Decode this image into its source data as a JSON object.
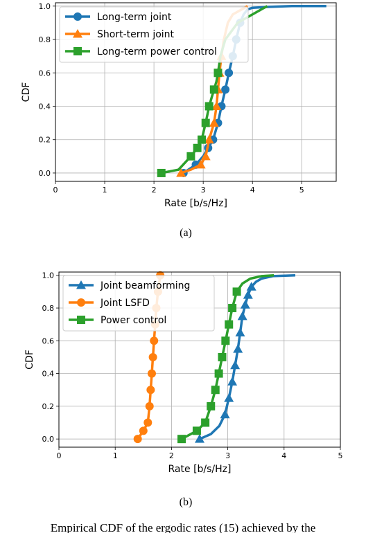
{
  "chart_data": [
    {
      "type": "line",
      "panel_label": "(a)",
      "xlabel": "Rate [b/s/Hz]",
      "ylabel": "CDF",
      "xlim": [
        0,
        5.7
      ],
      "ylim": [
        -0.05,
        1.02
      ],
      "xticks": [
        "0",
        "1",
        "2",
        "3",
        "4",
        "5"
      ],
      "yticks": [
        "0.0",
        "0.2",
        "0.4",
        "0.6",
        "0.8",
        "1.0"
      ],
      "grid": true,
      "legend_position": "top-left",
      "series": [
        {
          "name": "Long-term joint",
          "color": "#1f77b4",
          "marker": "circle",
          "x": [
            2.6,
            2.7,
            2.85,
            3.0,
            3.1,
            3.2,
            3.3,
            3.37,
            3.45,
            3.52,
            3.6,
            3.67,
            3.75,
            3.82,
            3.9,
            4.0,
            4.3,
            4.8,
            5.5
          ],
          "y": [
            0.0,
            0.02,
            0.05,
            0.1,
            0.15,
            0.2,
            0.3,
            0.4,
            0.5,
            0.6,
            0.7,
            0.8,
            0.9,
            0.95,
            0.98,
            0.99,
            0.995,
            1.0,
            1.0
          ],
          "marker_indices": [
            0,
            2,
            4,
            5,
            6,
            7,
            8,
            9,
            10,
            11,
            12
          ]
        },
        {
          "name": "Short-term joint",
          "color": "#ff7f0e",
          "marker": "triangle",
          "x": [
            2.55,
            2.75,
            2.95,
            3.05,
            3.12,
            3.17,
            3.22,
            3.27,
            3.3,
            3.33,
            3.37,
            3.42,
            3.5,
            3.6,
            3.9
          ],
          "y": [
            0.0,
            0.02,
            0.05,
            0.1,
            0.2,
            0.25,
            0.3,
            0.4,
            0.5,
            0.6,
            0.7,
            0.8,
            0.9,
            0.95,
            1.0
          ],
          "marker_indices": [
            0,
            2,
            3,
            4,
            6,
            7,
            8,
            9,
            10
          ]
        },
        {
          "name": "Long-term power control",
          "color": "#2ca02c",
          "marker": "square",
          "x": [
            2.15,
            2.5,
            2.75,
            2.88,
            2.97,
            3.05,
            3.12,
            3.17,
            3.22,
            3.27,
            3.3,
            3.35,
            3.45,
            3.7,
            4.3
          ],
          "y": [
            0.0,
            0.02,
            0.1,
            0.15,
            0.2,
            0.3,
            0.4,
            0.45,
            0.5,
            0.55,
            0.6,
            0.7,
            0.8,
            0.9,
            1.0
          ],
          "marker_indices": [
            0,
            2,
            3,
            4,
            5,
            6,
            8,
            10
          ]
        }
      ]
    },
    {
      "type": "line",
      "panel_label": "(b)",
      "xlabel": "Rate [b/s/Hz]",
      "ylabel": "CDF",
      "xlim": [
        0,
        5
      ],
      "ylim": [
        -0.05,
        1.02
      ],
      "xticks": [
        "0",
        "1",
        "2",
        "3",
        "4",
        "5"
      ],
      "yticks": [
        "0.0",
        "0.2",
        "0.4",
        "0.6",
        "0.8",
        "1.0"
      ],
      "grid": true,
      "legend_position": "top-left",
      "series": [
        {
          "name": "Joint beamforming",
          "color": "#1f77b4",
          "marker": "triangle",
          "x": [
            2.5,
            2.7,
            2.85,
            2.95,
            3.02,
            3.08,
            3.13,
            3.18,
            3.22,
            3.26,
            3.31,
            3.36,
            3.42,
            3.5,
            3.6,
            3.8,
            4.2
          ],
          "y": [
            0.0,
            0.03,
            0.08,
            0.15,
            0.25,
            0.35,
            0.45,
            0.55,
            0.65,
            0.75,
            0.82,
            0.88,
            0.93,
            0.96,
            0.98,
            0.995,
            1.0
          ],
          "marker_indices": [
            0,
            3,
            4,
            5,
            6,
            7,
            8,
            9,
            10,
            11,
            12
          ]
        },
        {
          "name": "Joint LSFD",
          "color": "#ff7f0e",
          "marker": "circle",
          "x": [
            1.4,
            1.5,
            1.58,
            1.61,
            1.63,
            1.65,
            1.67,
            1.69,
            1.71,
            1.73,
            1.76,
            1.8
          ],
          "y": [
            0.0,
            0.05,
            0.1,
            0.2,
            0.3,
            0.4,
            0.5,
            0.6,
            0.7,
            0.8,
            0.9,
            1.0
          ],
          "marker_indices": [
            0,
            1,
            2,
            3,
            4,
            5,
            6,
            7,
            8,
            9,
            10,
            11
          ]
        },
        {
          "name": "Power control",
          "color": "#2ca02c",
          "marker": "square",
          "x": [
            2.18,
            2.45,
            2.6,
            2.7,
            2.78,
            2.84,
            2.9,
            2.96,
            3.02,
            3.08,
            3.16,
            3.26,
            3.4,
            3.6,
            3.82
          ],
          "y": [
            0.0,
            0.05,
            0.1,
            0.2,
            0.3,
            0.4,
            0.5,
            0.6,
            0.7,
            0.8,
            0.9,
            0.95,
            0.98,
            0.995,
            1.0
          ],
          "marker_indices": [
            0,
            1,
            2,
            3,
            4,
            5,
            6,
            7,
            8,
            9,
            10
          ]
        }
      ]
    }
  ],
  "caption_text": "Empirical CDF of the ergodic rates (15) achieved by the"
}
